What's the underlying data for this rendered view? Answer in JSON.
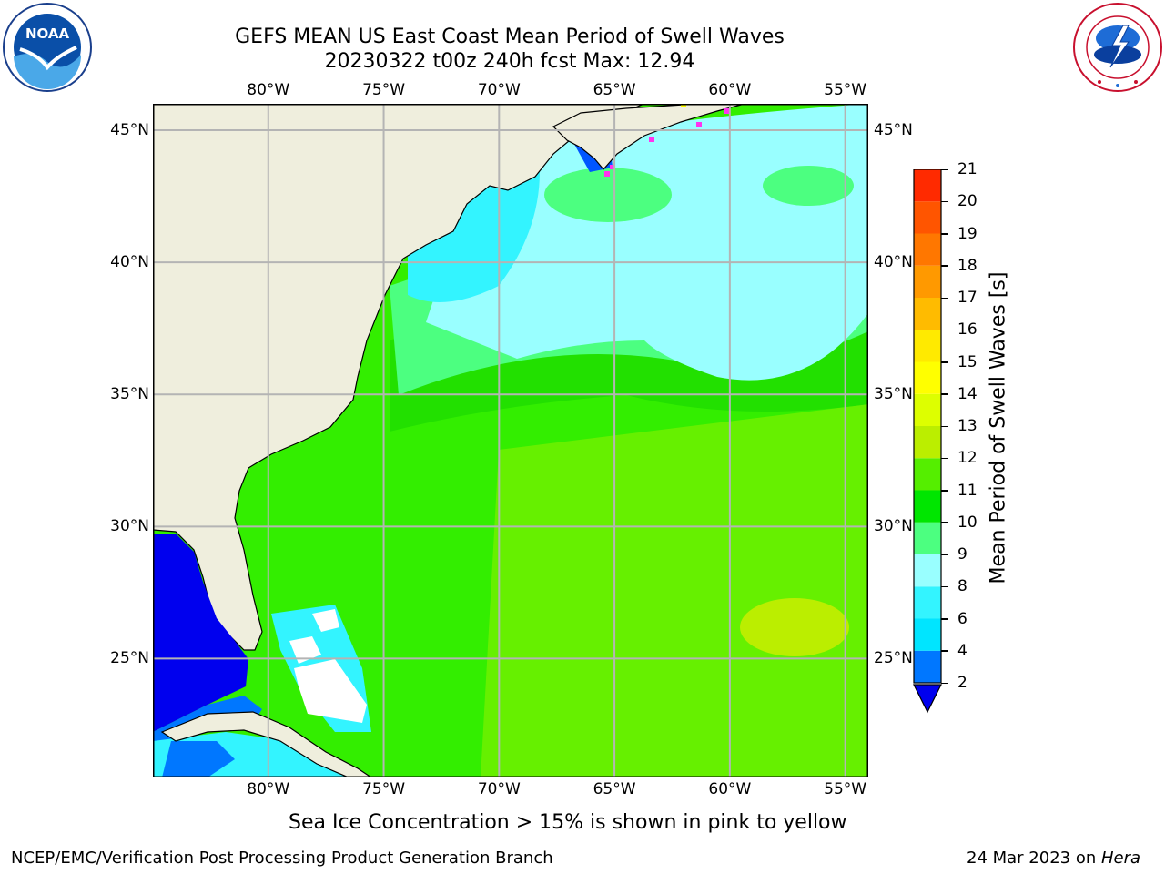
{
  "header": {
    "title_line1": "GEFS MEAN US East Coast Mean Period of Swell Waves",
    "title_line2": "20230322 t00z 240h fcst   Max: 12.94"
  },
  "logos": {
    "left": {
      "name": "noaa-logo",
      "text": "NOAA",
      "ring_text": "NATIONAL OCEANIC AND ATMOSPHERIC ADMINISTRATION · U.S. DEPARTMENT OF COMMERCE"
    },
    "right": {
      "name": "nws-logo",
      "ring_text": "NATIONAL WEATHER SERVICE"
    }
  },
  "map": {
    "region": "US East Coast / Western Atlantic",
    "lon_range": [
      -85,
      -54
    ],
    "lat_range": [
      20.5,
      46
    ],
    "lon_ticks": [
      {
        "value": -80,
        "label": "80°W"
      },
      {
        "value": -75,
        "label": "75°W"
      },
      {
        "value": -70,
        "label": "70°W"
      },
      {
        "value": -65,
        "label": "65°W"
      },
      {
        "value": -60,
        "label": "60°W"
      },
      {
        "value": -55,
        "label": "55°W"
      }
    ],
    "lat_ticks": [
      {
        "value": 45,
        "label": "45°N"
      },
      {
        "value": 40,
        "label": "40°N"
      },
      {
        "value": 35,
        "label": "35°N"
      },
      {
        "value": 30,
        "label": "30°N"
      },
      {
        "value": 25,
        "label": "25°N"
      }
    ],
    "grid": true,
    "colors": {
      "land": "#efeedd",
      "grid": "#b4b4b4",
      "ice_pink": "#ff33ee",
      "ice_yellow": "#ffff00"
    },
    "dominant_field": "green (9–12 s) across open ocean, light cyan (7–9 s) north of 35°N, blue (2–6 s) near coasts and Gulf of Mexico"
  },
  "colorbar": {
    "label": "Mean Period of Swell Waves [s]",
    "extend": "min",
    "levels": [
      {
        "value": 2,
        "label": "2",
        "color": "#0077ff"
      },
      {
        "value": 4,
        "label": "4",
        "color": "#00e5ff"
      },
      {
        "value": 6,
        "label": "6",
        "color": "#33f4ff"
      },
      {
        "value": 8,
        "label": "8",
        "color": "#99ffff"
      },
      {
        "value": 9,
        "label": "9",
        "color": "#4cff80"
      },
      {
        "value": 10,
        "label": "10",
        "color": "#00e600"
      },
      {
        "value": 11,
        "label": "11",
        "color": "#55ee00"
      },
      {
        "value": 12,
        "label": "12",
        "color": "#bbee00"
      },
      {
        "value": 13,
        "label": "13",
        "color": "#ddff00"
      },
      {
        "value": 14,
        "label": "14",
        "color": "#ffff00"
      },
      {
        "value": 15,
        "label": "15",
        "color": "#ffea00"
      },
      {
        "value": 16,
        "label": "16",
        "color": "#ffbb00"
      },
      {
        "value": 17,
        "label": "17",
        "color": "#ff9900"
      },
      {
        "value": 18,
        "label": "18",
        "color": "#ff7700"
      },
      {
        "value": 19,
        "label": "19",
        "color": "#ff5500"
      },
      {
        "value": 20,
        "label": "20",
        "color": "#ff2a00"
      },
      {
        "value": 21,
        "label": "21",
        "color": null
      }
    ],
    "under_color": "#0000ee"
  },
  "note": "Sea Ice Concentration > 15% is shown in pink to yellow",
  "footer": {
    "left": "NCEP/EMC/Verification Post Processing Product Generation Branch",
    "right_date": "24 Mar 2023 on ",
    "right_host": "Hera"
  }
}
